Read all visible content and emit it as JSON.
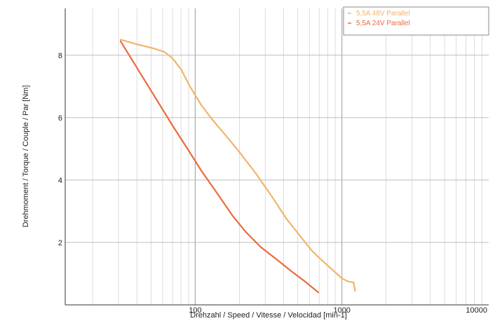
{
  "chart_data": {
    "type": "line",
    "title": "",
    "xlabel": "Drehzahl / Speed / Vitesse / Velocidad [min-1]",
    "ylabel": "Drehmoment / Torque / Couple / Par [Nm]",
    "xscale": "log",
    "xlim": [
      13,
      10000
    ],
    "ylim": [
      0,
      9.5
    ],
    "x_ticks": [
      {
        "v": 100,
        "label": "100"
      },
      {
        "v": 1000,
        "label": "1000"
      },
      {
        "v": 10000,
        "label": "10000"
      }
    ],
    "y_ticks": [
      {
        "v": 2,
        "label": "2"
      },
      {
        "v": 4,
        "label": "4"
      },
      {
        "v": 6,
        "label": "6"
      },
      {
        "v": 8,
        "label": "8"
      }
    ],
    "grid": true,
    "legend_position": "top-right",
    "series": [
      {
        "name": "5,5A  48V  Parallel",
        "color": "#f2b36b",
        "points": [
          [
            31,
            8.5
          ],
          [
            40,
            8.35
          ],
          [
            52,
            8.22
          ],
          [
            62,
            8.1
          ],
          [
            70,
            7.9
          ],
          [
            80,
            7.55
          ],
          [
            92,
            7.0
          ],
          [
            110,
            6.4
          ],
          [
            130,
            5.95
          ],
          [
            160,
            5.45
          ],
          [
            200,
            4.9
          ],
          [
            260,
            4.2
          ],
          [
            330,
            3.5
          ],
          [
            420,
            2.75
          ],
          [
            520,
            2.2
          ],
          [
            620,
            1.75
          ],
          [
            720,
            1.45
          ],
          [
            850,
            1.15
          ],
          [
            1000,
            0.85
          ],
          [
            1100,
            0.75
          ],
          [
            1200,
            0.72
          ],
          [
            1230,
            0.45
          ]
        ]
      },
      {
        "name": "5,5A  24V  Parallel",
        "color": "#ea6a3f",
        "points": [
          [
            31,
            8.45
          ],
          [
            40,
            7.6
          ],
          [
            55,
            6.55
          ],
          [
            70,
            5.75
          ],
          [
            90,
            4.95
          ],
          [
            110,
            4.3
          ],
          [
            140,
            3.6
          ],
          [
            180,
            2.85
          ],
          [
            220,
            2.35
          ],
          [
            280,
            1.85
          ],
          [
            360,
            1.45
          ],
          [
            460,
            1.05
          ],
          [
            560,
            0.75
          ],
          [
            690,
            0.4
          ]
        ]
      }
    ]
  }
}
